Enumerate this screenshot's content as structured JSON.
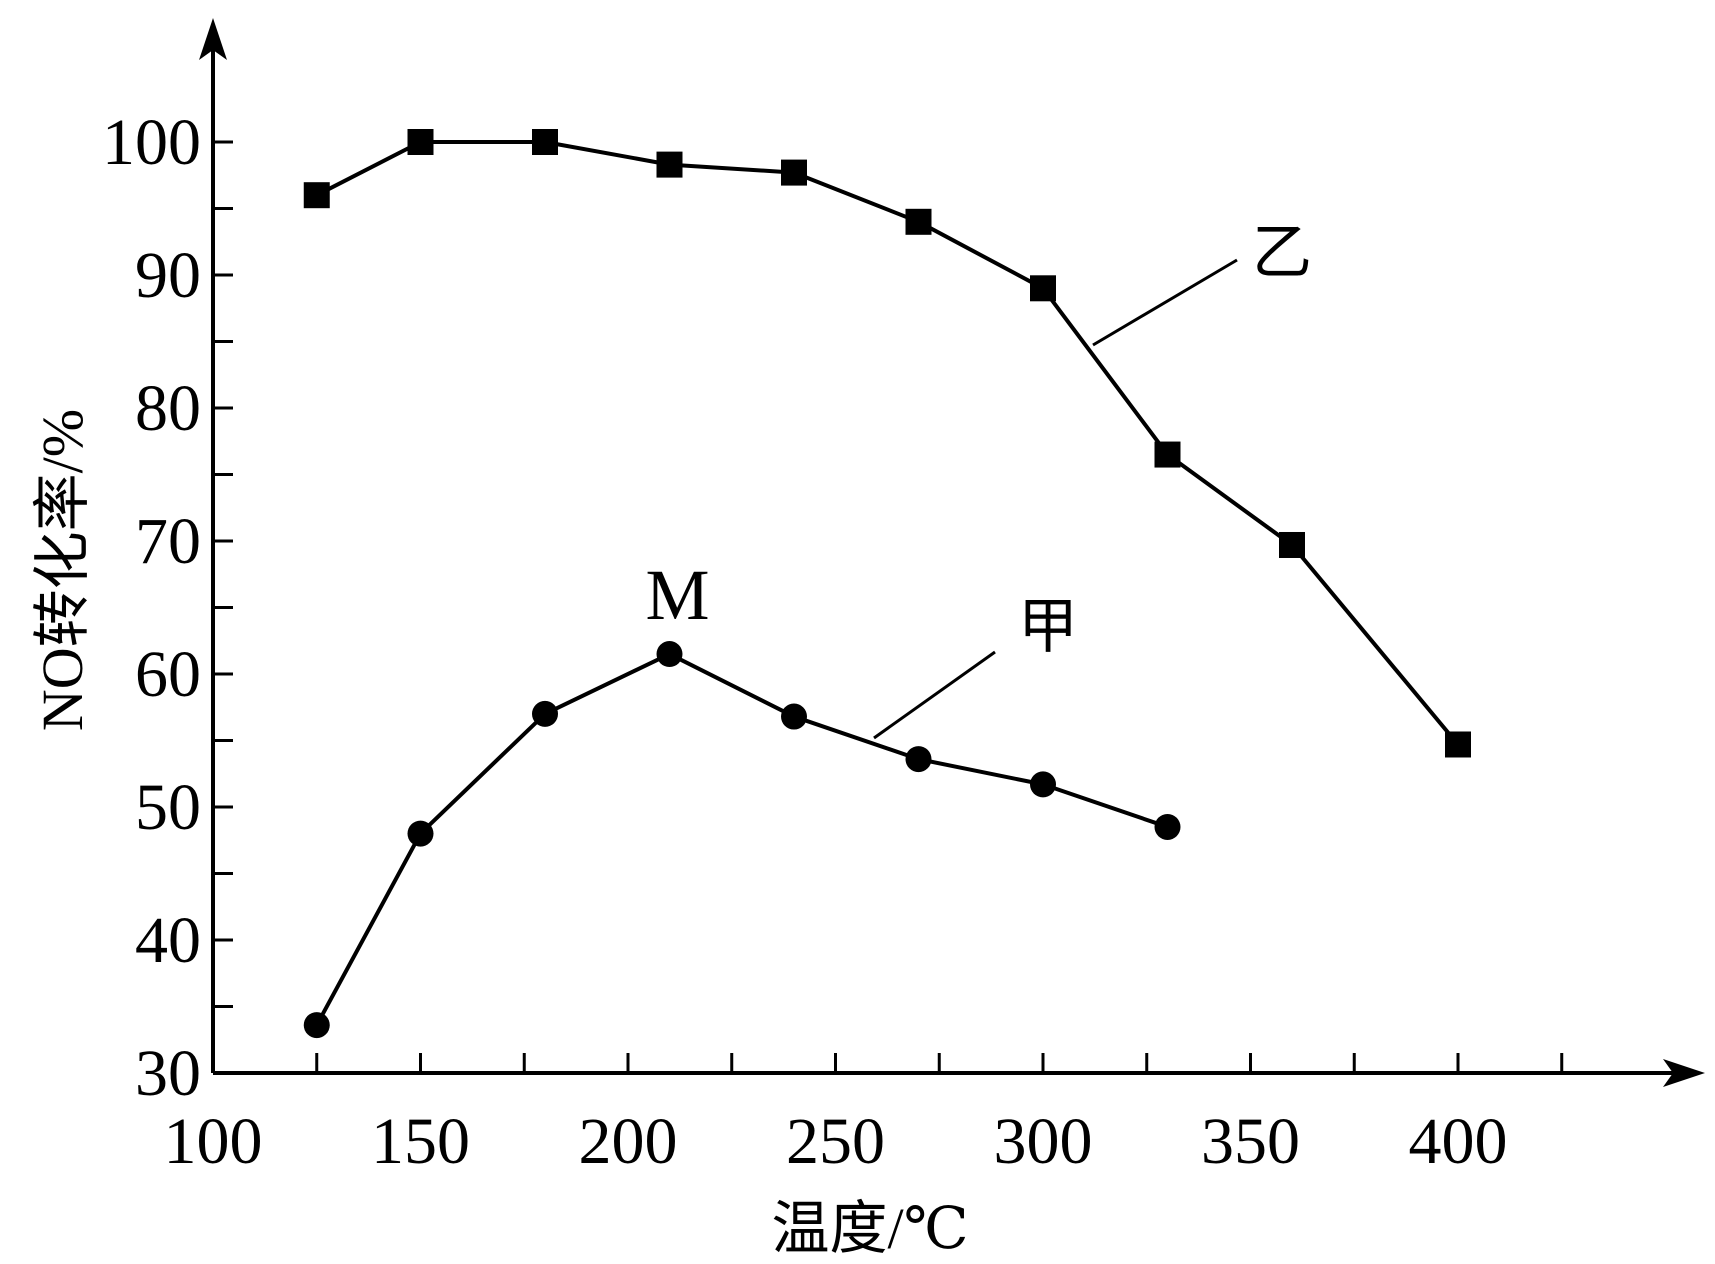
{
  "chart_data": {
    "type": "line",
    "xlabel": "温度/℃",
    "ylabel": "NO转化率/%",
    "xlim": [
      100,
      440
    ],
    "ylim": [
      30,
      105
    ],
    "x_ticks": [
      100,
      150,
      200,
      250,
      300,
      350,
      400
    ],
    "y_ticks": [
      30,
      40,
      50,
      60,
      70,
      80,
      90,
      100
    ],
    "x_minor_step": 25,
    "y_minor_step": 5,
    "grid": false,
    "legend": "none",
    "series": [
      {
        "name": "乙",
        "marker": "square",
        "x": [
          125,
          150,
          180,
          210,
          240,
          270,
          300,
          330,
          360,
          400
        ],
        "y": [
          96,
          100,
          100,
          98.3,
          97.7,
          94,
          89,
          76.5,
          69.7,
          54.7
        ]
      },
      {
        "name": "甲",
        "marker": "circle",
        "x": [
          125,
          150,
          180,
          210,
          240,
          270,
          300,
          330
        ],
        "y": [
          33.6,
          48,
          57,
          61.5,
          56.8,
          53.6,
          51.7,
          48.5
        ]
      }
    ],
    "annotations": [
      {
        "text": "M",
        "x": 210,
        "y": 61.5
      }
    ],
    "colors": {
      "line": "#000000",
      "background": "#ffffff"
    }
  }
}
